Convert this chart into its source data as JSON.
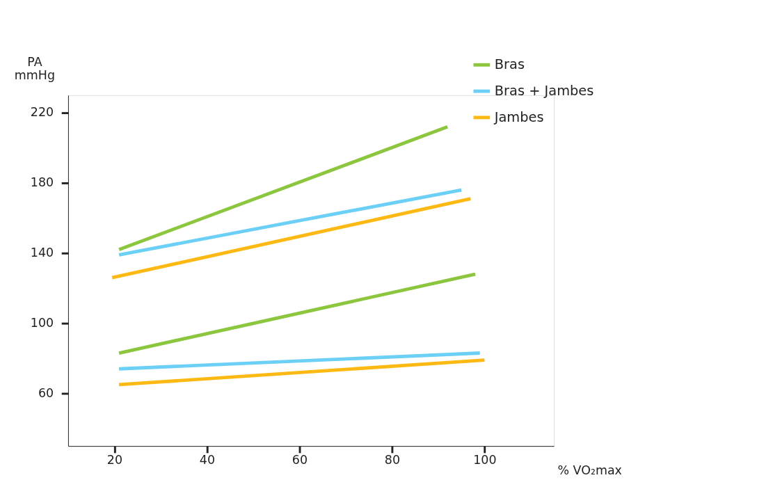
{
  "chart_data": {
    "type": "line",
    "ylabel": "PA\nmmHg",
    "xlabel": "% VO₂max",
    "xlim": [
      10,
      115
    ],
    "xticks": [
      20,
      40,
      60,
      80,
      100
    ],
    "ylim": [
      30,
      230
    ],
    "yticks": [
      60,
      100,
      140,
      180,
      220
    ],
    "grid": false,
    "legend": "top right",
    "marker": "none",
    "line_style": "solid",
    "series": [
      {
        "name": "Bras",
        "color": "#8cc63f",
        "x": [
          21,
          92
        ],
        "values": [
          142,
          212
        ]
      },
      {
        "name": "Bras + Jambes",
        "color": "#6ccff6",
        "x": [
          21,
          95
        ],
        "values": [
          139,
          176
        ]
      },
      {
        "name": "Jambes",
        "color": "#fdb913",
        "x": [
          19.5,
          97
        ],
        "values": [
          126,
          171
        ]
      },
      {
        "color": "#8cc63f",
        "x": [
          21,
          98
        ],
        "values": [
          83,
          128
        ]
      },
      {
        "color": "#6ccff6",
        "x": [
          21,
          99
        ],
        "values": [
          74,
          83
        ]
      },
      {
        "color": "#fdb913",
        "x": [
          21,
          100
        ],
        "values": [
          65,
          79
        ]
      }
    ]
  }
}
